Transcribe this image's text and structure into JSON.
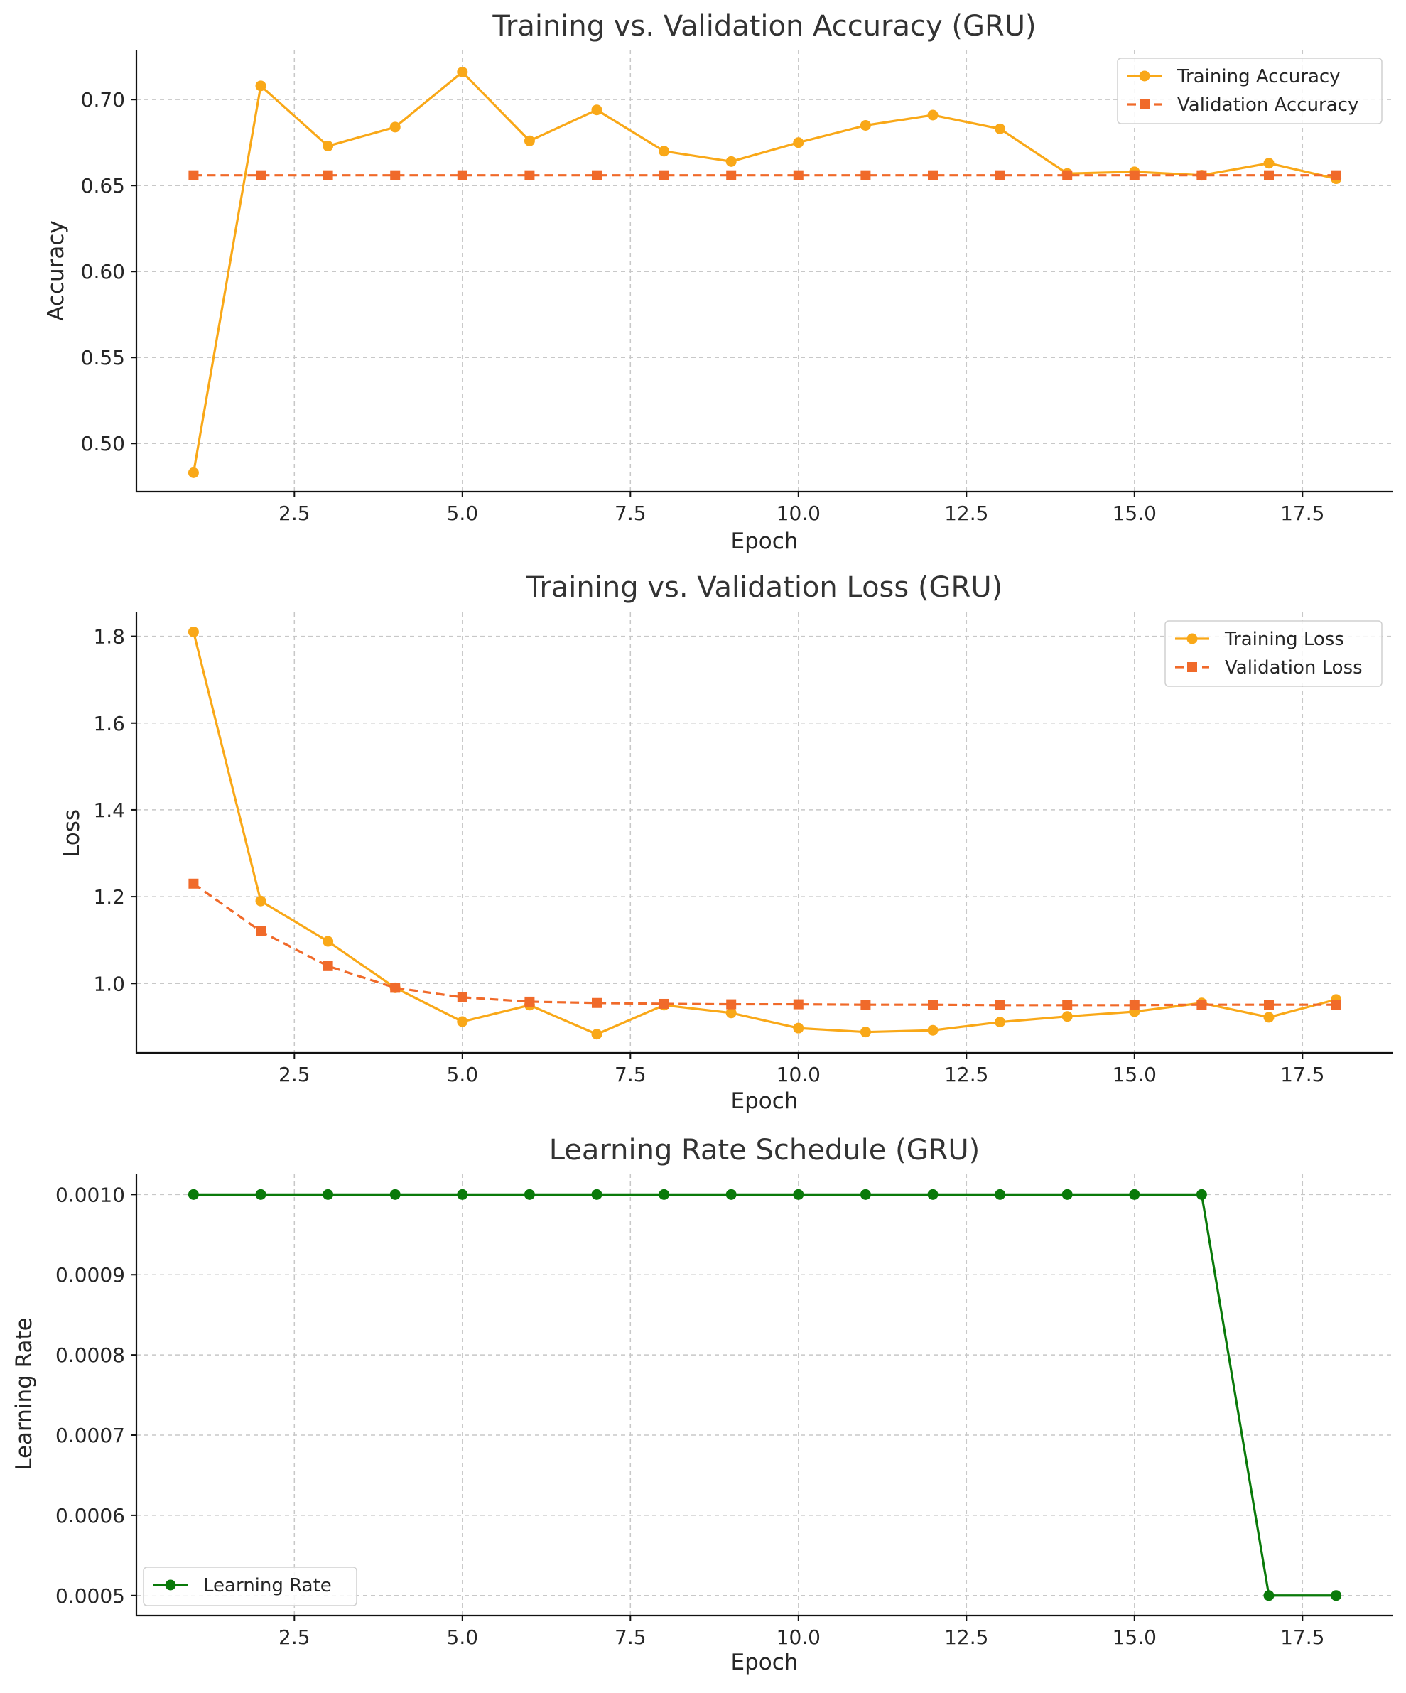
{
  "chart_data": [
    {
      "type": "line",
      "title": "Training vs. Validation Accuracy (GRU)",
      "xlabel": "Epoch",
      "ylabel": "Accuracy",
      "xlim": [
        0.15,
        18.85
      ],
      "ylim": [
        0.472,
        0.729
      ],
      "xticks": [
        2.5,
        5.0,
        7.5,
        10.0,
        12.5,
        15.0,
        17.5
      ],
      "xtick_labels": [
        "2.5",
        "5.0",
        "7.5",
        "10.0",
        "12.5",
        "15.0",
        "17.5"
      ],
      "yticks": [
        0.5,
        0.55,
        0.6,
        0.65,
        0.7
      ],
      "ytick_labels": [
        "0.50",
        "0.55",
        "0.60",
        "0.65",
        "0.70"
      ],
      "grid": true,
      "legend_position": "top-right",
      "x": [
        1,
        2,
        3,
        4,
        5,
        6,
        7,
        8,
        9,
        10,
        11,
        12,
        13,
        14,
        15,
        16,
        17,
        18
      ],
      "series": [
        {
          "name": "Training Accuracy",
          "color": "#f9a818",
          "style": "solid",
          "marker": "circle",
          "values": [
            0.483,
            0.708,
            0.673,
            0.684,
            0.716,
            0.676,
            0.694,
            0.67,
            0.664,
            0.675,
            0.685,
            0.691,
            0.683,
            0.657,
            0.658,
            0.656,
            0.663,
            0.654
          ]
        },
        {
          "name": "Validation Accuracy",
          "color": "#f06a2a",
          "style": "dashed",
          "marker": "square",
          "values": [
            0.656,
            0.656,
            0.656,
            0.656,
            0.656,
            0.656,
            0.656,
            0.656,
            0.656,
            0.656,
            0.656,
            0.656,
            0.656,
            0.656,
            0.656,
            0.656,
            0.656,
            0.656
          ]
        }
      ]
    },
    {
      "type": "line",
      "title": "Training vs. Validation Loss (GRU)",
      "xlabel": "Epoch",
      "ylabel": "Loss",
      "xlim": [
        0.15,
        18.85
      ],
      "ylim": [
        0.84,
        1.855
      ],
      "xticks": [
        2.5,
        5.0,
        7.5,
        10.0,
        12.5,
        15.0,
        17.5
      ],
      "xtick_labels": [
        "2.5",
        "5.0",
        "7.5",
        "10.0",
        "12.5",
        "15.0",
        "17.5"
      ],
      "yticks": [
        1.0,
        1.2,
        1.4,
        1.6,
        1.8
      ],
      "ytick_labels": [
        "1.0",
        "1.2",
        "1.4",
        "1.6",
        "1.8"
      ],
      "grid": true,
      "legend_position": "top-right",
      "x": [
        1,
        2,
        3,
        4,
        5,
        6,
        7,
        8,
        9,
        10,
        11,
        12,
        13,
        14,
        15,
        16,
        17,
        18
      ],
      "series": [
        {
          "name": "Training Loss",
          "color": "#f9a818",
          "style": "solid",
          "marker": "circle",
          "values": [
            1.81,
            1.19,
            1.097,
            0.99,
            0.912,
            0.95,
            0.883,
            0.95,
            0.932,
            0.897,
            0.888,
            0.892,
            0.911,
            0.924,
            0.935,
            0.955,
            0.922,
            0.963
          ]
        },
        {
          "name": "Validation Loss",
          "color": "#f06a2a",
          "style": "dashed",
          "marker": "square",
          "values": [
            1.23,
            1.12,
            1.04,
            0.99,
            0.968,
            0.958,
            0.955,
            0.953,
            0.952,
            0.952,
            0.951,
            0.951,
            0.95,
            0.95,
            0.95,
            0.951,
            0.951,
            0.951
          ]
        }
      ]
    },
    {
      "type": "line",
      "title": "Learning Rate Schedule (GRU)",
      "xlabel": "Epoch",
      "ylabel": "Learning Rate",
      "xlim": [
        0.15,
        18.85
      ],
      "ylim": [
        0.000475,
        0.001026
      ],
      "xticks": [
        2.5,
        5.0,
        7.5,
        10.0,
        12.5,
        15.0,
        17.5
      ],
      "xtick_labels": [
        "2.5",
        "5.0",
        "7.5",
        "10.0",
        "12.5",
        "15.0",
        "17.5"
      ],
      "yticks": [
        0.0005,
        0.0006,
        0.0007,
        0.0008,
        0.0009,
        0.001
      ],
      "ytick_labels": [
        "0.0005",
        "0.0006",
        "0.0007",
        "0.0008",
        "0.0009",
        "0.0010"
      ],
      "grid": true,
      "legend_position": "bottom-left",
      "x": [
        1,
        2,
        3,
        4,
        5,
        6,
        7,
        8,
        9,
        10,
        11,
        12,
        13,
        14,
        15,
        16,
        17,
        18
      ],
      "series": [
        {
          "name": "Learning Rate",
          "color": "#0a7a0a",
          "style": "solid",
          "marker": "circle",
          "values": [
            0.001,
            0.001,
            0.001,
            0.001,
            0.001,
            0.001,
            0.001,
            0.001,
            0.001,
            0.001,
            0.001,
            0.001,
            0.001,
            0.001,
            0.001,
            0.001,
            0.0005,
            0.0005
          ]
        }
      ]
    }
  ]
}
